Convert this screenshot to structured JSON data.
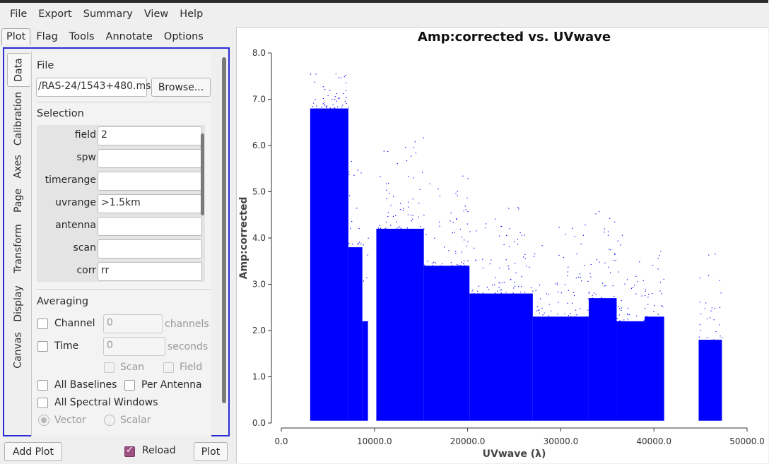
{
  "menubar": {
    "items": [
      "File",
      "Export",
      "Summary",
      "View",
      "Help"
    ]
  },
  "top_tabs": [
    {
      "label": "Plot",
      "active": true
    },
    {
      "label": "Flag",
      "active": false
    },
    {
      "label": "Tools",
      "active": false
    },
    {
      "label": "Annotate",
      "active": false
    },
    {
      "label": "Options",
      "active": false
    }
  ],
  "side_tabs": [
    {
      "label": "Data",
      "active": true
    },
    {
      "label": "Calibration",
      "active": false
    },
    {
      "label": "Axes",
      "active": false
    },
    {
      "label": "Page",
      "active": false
    },
    {
      "label": "Transform",
      "active": false
    },
    {
      "label": "Display",
      "active": false
    },
    {
      "label": "Canvas",
      "active": false
    }
  ],
  "file": {
    "section_title": "File",
    "path_value": "/RAS-24/1543+480.ms",
    "browse_label": "Browse..."
  },
  "selection": {
    "section_title": "Selection",
    "fields": [
      {
        "label": "field",
        "value": "2"
      },
      {
        "label": "spw",
        "value": ""
      },
      {
        "label": "timerange",
        "value": ""
      },
      {
        "label": "uvrange",
        "value": ">1.5km"
      },
      {
        "label": "antenna",
        "value": ""
      },
      {
        "label": "scan",
        "value": ""
      },
      {
        "label": "corr",
        "value": "rr"
      }
    ]
  },
  "averaging": {
    "section_title": "Averaging",
    "channel_label": "Channel",
    "channel_value": "0",
    "channel_unit": "channels",
    "time_label": "Time",
    "time_value": "0",
    "time_unit": "seconds",
    "scan_label": "Scan",
    "field_label": "Field",
    "all_baselines_label": "All Baselines",
    "per_antenna_label": "Per Antenna",
    "all_spw_label": "All Spectral Windows",
    "vector_label": "Vector",
    "scalar_label": "Scalar"
  },
  "bottom": {
    "add_plot_label": "Add Plot",
    "reload_label": "Reload",
    "reload_checked": true,
    "plot_label": "Plot"
  },
  "colors": {
    "points": "#0000ff",
    "panel_border": "#2a2ad6",
    "reload_check": "#9c4f83"
  },
  "chart_data": {
    "type": "scatter",
    "title": "Amp:corrected vs. UVwave",
    "xlabel": "UVwave (λ)",
    "ylabel": "Amp:corrected",
    "xlim": [
      0,
      50000
    ],
    "ylim": [
      0,
      8
    ],
    "x_ticks": [
      0,
      10000,
      20000,
      30000,
      40000,
      50000
    ],
    "x_tick_labels": [
      "0.0",
      "10000.0",
      "20000.0",
      "30000.0",
      "40000.0",
      "50000.0"
    ],
    "y_ticks": [
      0,
      1,
      2,
      3,
      4,
      5,
      6,
      7,
      8
    ],
    "y_tick_labels": [
      "0.0",
      "1.0",
      "2.0",
      "3.0",
      "4.0",
      "5.0",
      "6.0",
      "7.0",
      "8.0"
    ],
    "series": [
      {
        "values": [
          {
            "x_range": [
              3100,
              7200
            ],
            "y_max": 6.8
          },
          {
            "x_range": [
              7200,
              8700
            ],
            "y_max": 3.8
          },
          {
            "x_range": [
              8700,
              9300
            ],
            "y_max": 2.2
          },
          {
            "x_range": [
              10200,
              15300
            ],
            "y_max": 4.2
          },
          {
            "x_range": [
              15300,
              20200
            ],
            "y_max": 3.4
          },
          {
            "x_range": [
              20200,
              27000
            ],
            "y_max": 2.8
          },
          {
            "x_range": [
              27000,
              33000
            ],
            "y_max": 2.3
          },
          {
            "x_range": [
              33000,
              36000
            ],
            "y_max": 2.7
          },
          {
            "x_range": [
              36000,
              39000
            ],
            "y_max": 2.2
          },
          {
            "x_range": [
              39000,
              41100
            ],
            "y_max": 2.3
          },
          {
            "x_range": [
              44800,
              47300
            ],
            "y_max": 1.8
          }
        ]
      }
    ],
    "gaps": [
      [
        9300,
        10200
      ],
      [
        41100,
        44800
      ]
    ],
    "grid": false
  }
}
